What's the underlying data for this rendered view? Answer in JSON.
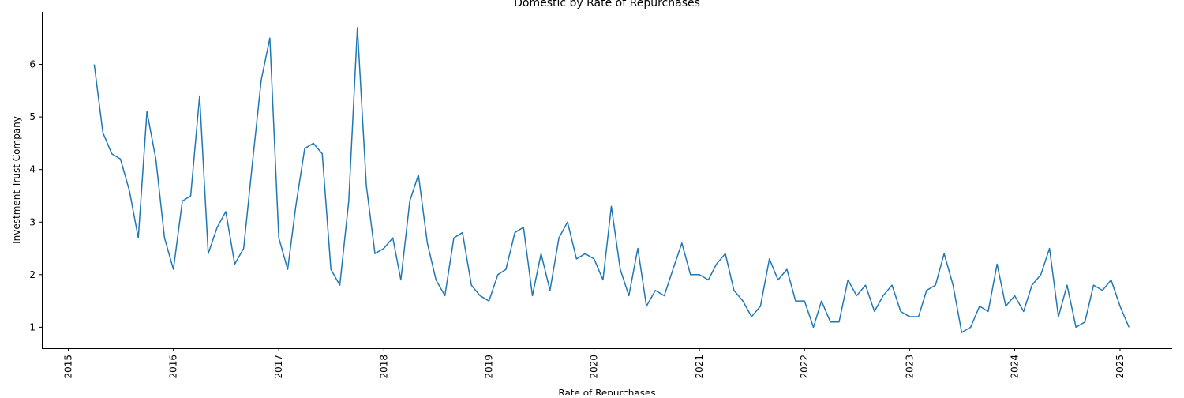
{
  "chart_data": {
    "type": "line",
    "title": "Domestic by Rate of Repurchases",
    "xlabel": "Rate of Repurchases",
    "ylabel": "Investment Trust Company",
    "x_axis_type": "date",
    "xlim": [
      "2014-10-01",
      "2025-07-01"
    ],
    "ylim": [
      0.6,
      7.0
    ],
    "x_tick_labels": [
      "2015",
      "2016",
      "2017",
      "2018",
      "2019",
      "2020",
      "2021",
      "2022",
      "2023",
      "2024",
      "2025"
    ],
    "y_ticks": [
      1,
      2,
      3,
      4,
      5,
      6
    ],
    "grid": false,
    "line_color": "#1f77b4",
    "series": [
      {
        "x": [
          "2015-04",
          "2015-05",
          "2015-06",
          "2015-07",
          "2015-08",
          "2015-09",
          "2015-10",
          "2015-11",
          "2015-12",
          "2016-01",
          "2016-02",
          "2016-03",
          "2016-04",
          "2016-05",
          "2016-06",
          "2016-07",
          "2016-08",
          "2016-09",
          "2016-10",
          "2016-11",
          "2016-12",
          "2017-01",
          "2017-02",
          "2017-03",
          "2017-04",
          "2017-05",
          "2017-06",
          "2017-07",
          "2017-08",
          "2017-09",
          "2017-10",
          "2017-11",
          "2017-12",
          "2018-01",
          "2018-02",
          "2018-03",
          "2018-04",
          "2018-05",
          "2018-06",
          "2018-07",
          "2018-08",
          "2018-09",
          "2018-10",
          "2018-11",
          "2018-12",
          "2019-01",
          "2019-02",
          "2019-03",
          "2019-04",
          "2019-05",
          "2019-06",
          "2019-07",
          "2019-08",
          "2019-09",
          "2019-10",
          "2019-11",
          "2019-12",
          "2020-01",
          "2020-02",
          "2020-03",
          "2020-04",
          "2020-05",
          "2020-06",
          "2020-07",
          "2020-08",
          "2020-09",
          "2020-10",
          "2020-11",
          "2020-12",
          "2021-01",
          "2021-02",
          "2021-03",
          "2021-04",
          "2021-05",
          "2021-06",
          "2021-07",
          "2021-08",
          "2021-09",
          "2021-10",
          "2021-11",
          "2021-12",
          "2022-01",
          "2022-02",
          "2022-03",
          "2022-04",
          "2022-05",
          "2022-06",
          "2022-07",
          "2022-08",
          "2022-09",
          "2022-10",
          "2022-11",
          "2022-12",
          "2023-01",
          "2023-02",
          "2023-03",
          "2023-04",
          "2023-05",
          "2023-06",
          "2023-07",
          "2023-08",
          "2023-09",
          "2023-10",
          "2023-11",
          "2023-12",
          "2024-01",
          "2024-02",
          "2024-03",
          "2024-04",
          "2024-05",
          "2024-06",
          "2024-07",
          "2024-08",
          "2024-09",
          "2024-10",
          "2024-11",
          "2024-12",
          "2025-01",
          "2025-02"
        ],
        "values": [
          6.0,
          4.7,
          4.3,
          4.2,
          3.6,
          2.7,
          5.1,
          4.2,
          2.7,
          2.1,
          3.4,
          3.5,
          5.4,
          2.4,
          2.9,
          3.2,
          2.2,
          2.5,
          4.1,
          5.7,
          6.5,
          2.7,
          2.1,
          3.3,
          4.4,
          4.5,
          4.3,
          2.1,
          1.8,
          3.4,
          6.7,
          3.7,
          2.4,
          2.5,
          2.7,
          1.9,
          3.4,
          3.9,
          2.6,
          1.9,
          1.6,
          2.7,
          2.8,
          1.8,
          1.6,
          1.5,
          2.0,
          2.1,
          2.8,
          2.9,
          1.6,
          2.4,
          1.7,
          2.7,
          3.0,
          2.3,
          2.4,
          2.3,
          1.9,
          3.3,
          2.1,
          1.6,
          2.5,
          1.4,
          1.7,
          1.6,
          2.1,
          2.6,
          2.0,
          2.0,
          1.9,
          2.2,
          2.4,
          1.7,
          1.5,
          1.2,
          1.4,
          2.3,
          1.9,
          2.1,
          1.5,
          1.5,
          1.0,
          1.5,
          1.1,
          1.1,
          1.9,
          1.6,
          1.8,
          1.3,
          1.6,
          1.8,
          1.3,
          1.2,
          1.2,
          1.7,
          1.8,
          2.4,
          1.8,
          0.9,
          1.0,
          1.4,
          1.3,
          2.2,
          1.4,
          1.6,
          1.3,
          1.8,
          2.0,
          2.5,
          1.2,
          1.8,
          1.0,
          1.1,
          1.8,
          1.7,
          1.9,
          1.4,
          1.0
        ]
      }
    ]
  }
}
